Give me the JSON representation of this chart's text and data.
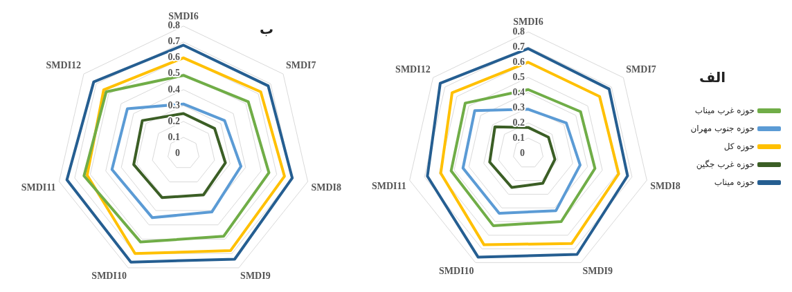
{
  "chart_data": [
    {
      "type": "radar",
      "title": "ب",
      "categories": [
        "SMDI6",
        "SMDI7",
        "SMDI8",
        "SMDI9",
        "SMDI10",
        "SMDI11",
        "SMDI12"
      ],
      "ylim": [
        0,
        0.8
      ],
      "yticks": [
        0,
        0.1,
        0.2,
        0.3,
        0.4,
        0.5,
        0.6,
        0.7,
        0.8
      ],
      "grid": true,
      "marker": "none",
      "legend": false,
      "series": [
        {
          "color": "#70ad47",
          "values": [
            0.49,
            0.52,
            0.55,
            0.58,
            0.62,
            0.64,
            0.62
          ]
        },
        {
          "color": "#5b9bd5",
          "values": [
            0.31,
            0.33,
            0.37,
            0.41,
            0.45,
            0.46,
            0.45
          ]
        },
        {
          "color": "#ffc000",
          "values": [
            0.6,
            0.62,
            0.65,
            0.68,
            0.7,
            0.62,
            0.64
          ]
        },
        {
          "color": "#3b5e25",
          "values": [
            0.25,
            0.25,
            0.27,
            0.29,
            0.31,
            0.32,
            0.33
          ]
        },
        {
          "color": "#255e91",
          "values": [
            0.68,
            0.68,
            0.7,
            0.74,
            0.76,
            0.75,
            0.72
          ]
        }
      ]
    },
    {
      "type": "radar",
      "title": "الف",
      "categories": [
        "SMDI6",
        "SMDI7",
        "SMDI8",
        "SMDI9",
        "SMDI10",
        "SMDI11",
        "SMDI12"
      ],
      "ylim": [
        0,
        0.8
      ],
      "yticks": [
        0,
        0.1,
        0.2,
        0.3,
        0.4,
        0.5,
        0.6,
        0.7,
        0.8
      ],
      "grid": true,
      "marker": "none",
      "legend": "right",
      "series": [
        {
          "name": "حوزه غرب میناب",
          "color": "#70ad47",
          "values": [
            0.42,
            0.44,
            0.45,
            0.5,
            0.53,
            0.52,
            0.53
          ]
        },
        {
          "name": "حوزه جنوب مهران",
          "color": "#5b9bd5",
          "values": [
            0.29,
            0.32,
            0.35,
            0.42,
            0.44,
            0.44,
            0.45
          ]
        },
        {
          "name": "حوزه کل",
          "color": "#ffc000",
          "values": [
            0.6,
            0.6,
            0.61,
            0.66,
            0.67,
            0.59,
            0.64
          ]
        },
        {
          "name": "حوزه غرب جگین",
          "color": "#3b5e25",
          "values": [
            0.17,
            0.17,
            0.18,
            0.22,
            0.25,
            0.26,
            0.28
          ]
        },
        {
          "name": "حوزه میناب",
          "color": "#255e91",
          "values": [
            0.69,
            0.68,
            0.67,
            0.74,
            0.76,
            0.68,
            0.74
          ]
        }
      ]
    }
  ]
}
